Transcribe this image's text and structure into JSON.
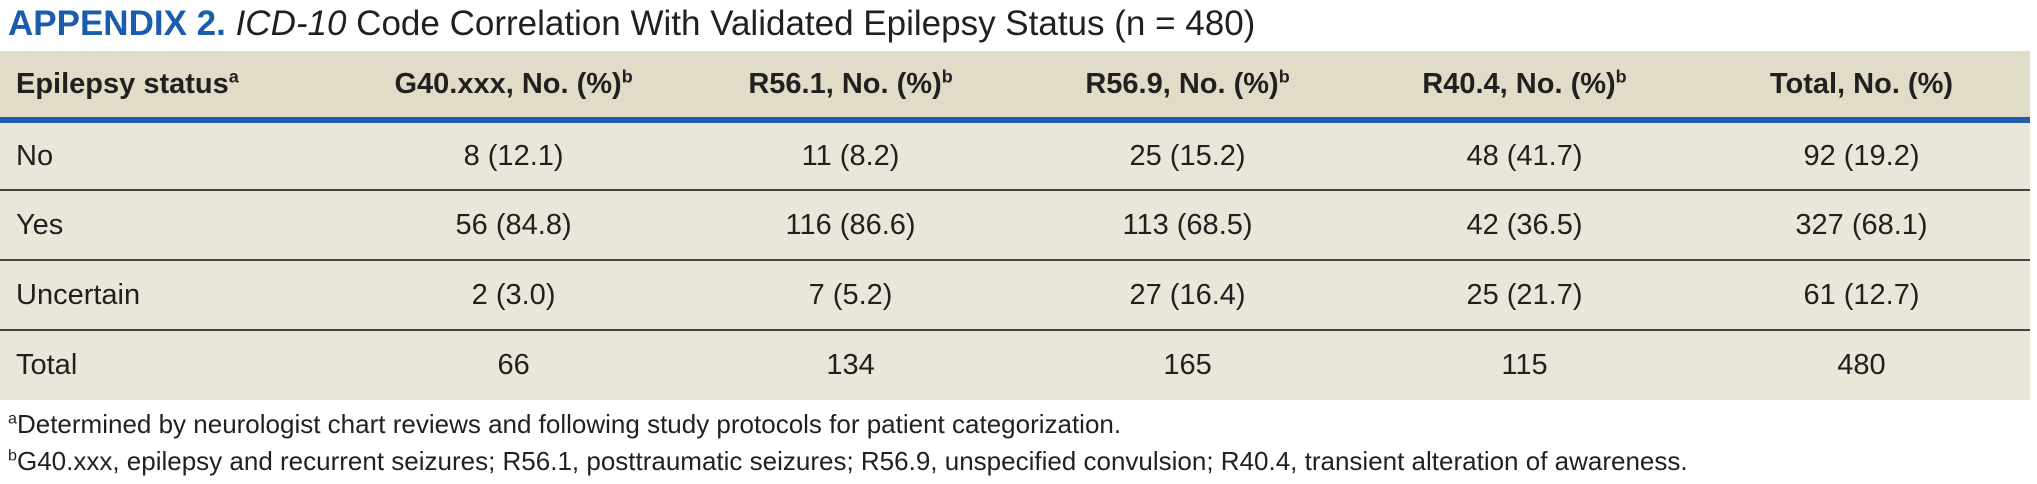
{
  "title": {
    "label": "APPENDIX 2.",
    "code": " ICD-10",
    "rest": " Code Correlation With Validated Epilepsy Status (n = 480)"
  },
  "table": {
    "columns": [
      {
        "label": "Epilepsy status",
        "sup": "a"
      },
      {
        "label": "G40.xxx, No. (%)",
        "sup": "b"
      },
      {
        "label": "R56.1, No. (%)",
        "sup": "b"
      },
      {
        "label": "R56.9, No. (%)",
        "sup": "b"
      },
      {
        "label": "R40.4, No. (%)",
        "sup": "b"
      },
      {
        "label": "Total, No. (%)",
        "sup": ""
      }
    ],
    "rows": [
      {
        "status": "No",
        "values": [
          "8 (12.1)",
          "11 (8.2)",
          "25 (15.2)",
          "48 (41.7)",
          "92 (19.2)"
        ]
      },
      {
        "status": "Yes",
        "values": [
          "56 (84.8)",
          "116 (86.6)",
          "113 (68.5)",
          "42 (36.5)",
          "327 (68.1)"
        ]
      },
      {
        "status": "Uncertain",
        "values": [
          "2 (3.0)",
          "7 (5.2)",
          "27 (16.4)",
          "25 (21.7)",
          "61 (12.7)"
        ]
      },
      {
        "status": "Total",
        "values": [
          "66",
          "134",
          "165",
          "115",
          "480"
        ]
      }
    ]
  },
  "footnotes": [
    {
      "sup": "a",
      "text": "Determined by neurologist chart reviews and following study protocols for patient categorization."
    },
    {
      "sup": "b",
      "text": "G40.xxx, epilepsy and recurrent seizures; R56.1, posttraumatic seizures; R56.9, unspecified convulsion; R40.4, transient alteration of awareness."
    }
  ],
  "colors": {
    "accent_blue": "#1b5dad",
    "rule_blue": "#1e5cad",
    "header_bg": "#e1dcc8",
    "row_bg": "#eae7da",
    "text": "#231f20",
    "divider": "#454545"
  }
}
